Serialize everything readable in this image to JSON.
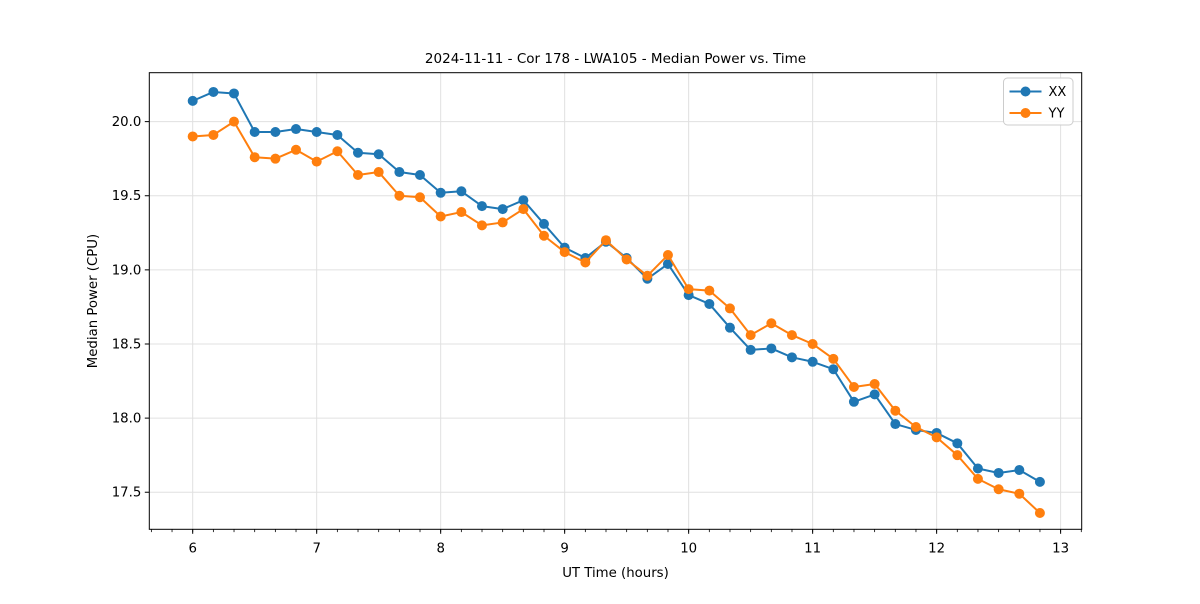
{
  "figure": {
    "title": "2024-11-11 - Cor 178 - LWA105 - Median Power vs. Time"
  },
  "chart_data": {
    "type": "line",
    "title": "2024-11-11 - Cor 178 - LWA105 - Median Power vs. Time",
    "xlabel": "UT Time (hours)",
    "ylabel": "Median Power (CPU)",
    "x": [
      6.0,
      6.167,
      6.333,
      6.5,
      6.667,
      6.833,
      7.0,
      7.167,
      7.333,
      7.5,
      7.667,
      7.833,
      8.0,
      8.167,
      8.333,
      8.5,
      8.667,
      8.833,
      9.0,
      9.167,
      9.333,
      9.5,
      9.667,
      9.833,
      10.0,
      10.167,
      10.333,
      10.5,
      10.667,
      10.833,
      11.0,
      11.167,
      11.333,
      11.5,
      11.667,
      11.833,
      12.0,
      12.167,
      12.333,
      12.5,
      12.667,
      12.833
    ],
    "series": [
      {
        "name": "XX",
        "color": "#1f77b4",
        "values": [
          20.14,
          20.2,
          20.19,
          19.93,
          19.93,
          19.95,
          19.93,
          19.91,
          19.79,
          19.78,
          19.66,
          19.64,
          19.52,
          19.53,
          19.43,
          19.41,
          19.47,
          19.31,
          19.15,
          19.08,
          19.19,
          19.08,
          18.94,
          19.04,
          18.83,
          18.77,
          18.61,
          18.46,
          18.47,
          18.41,
          18.38,
          18.33,
          18.11,
          18.16,
          17.96,
          17.92,
          17.9,
          17.83,
          17.66,
          17.63,
          17.65,
          17.57
        ]
      },
      {
        "name": "YY",
        "color": "#ff7f0e",
        "values": [
          19.9,
          19.91,
          20.0,
          19.76,
          19.75,
          19.81,
          19.73,
          19.8,
          19.64,
          19.66,
          19.5,
          19.49,
          19.36,
          19.39,
          19.3,
          19.32,
          19.41,
          19.23,
          19.12,
          19.05,
          19.2,
          19.07,
          18.96,
          19.1,
          18.87,
          18.86,
          18.74,
          18.56,
          18.64,
          18.56,
          18.5,
          18.4,
          18.21,
          18.23,
          18.05,
          17.94,
          17.87,
          17.75,
          17.59,
          17.52,
          17.49,
          17.36
        ]
      }
    ],
    "xlim": [
      5.65,
      13.17
    ],
    "ylim": [
      17.25,
      20.33
    ],
    "xticks": {
      "values": [
        6,
        7,
        8,
        9,
        10,
        11,
        12,
        13
      ],
      "labels": [
        "6",
        "7",
        "8",
        "9",
        "10",
        "11",
        "12",
        "13"
      ]
    },
    "yticks": {
      "values": [
        17.5,
        18.0,
        18.5,
        19.0,
        19.5,
        20.0
      ],
      "labels": [
        "17.5",
        "18.0",
        "18.5",
        "19.0",
        "19.5",
        "20.0"
      ]
    },
    "minor_xtick_step": 0.166667,
    "grid": true,
    "grid_color": "#e0e0e0",
    "frame_color": "#000000",
    "legend": {
      "position": "upper right",
      "entries": [
        "XX",
        "YY"
      ]
    },
    "line_width": 2,
    "marker": "o",
    "marker_radius": 5
  }
}
